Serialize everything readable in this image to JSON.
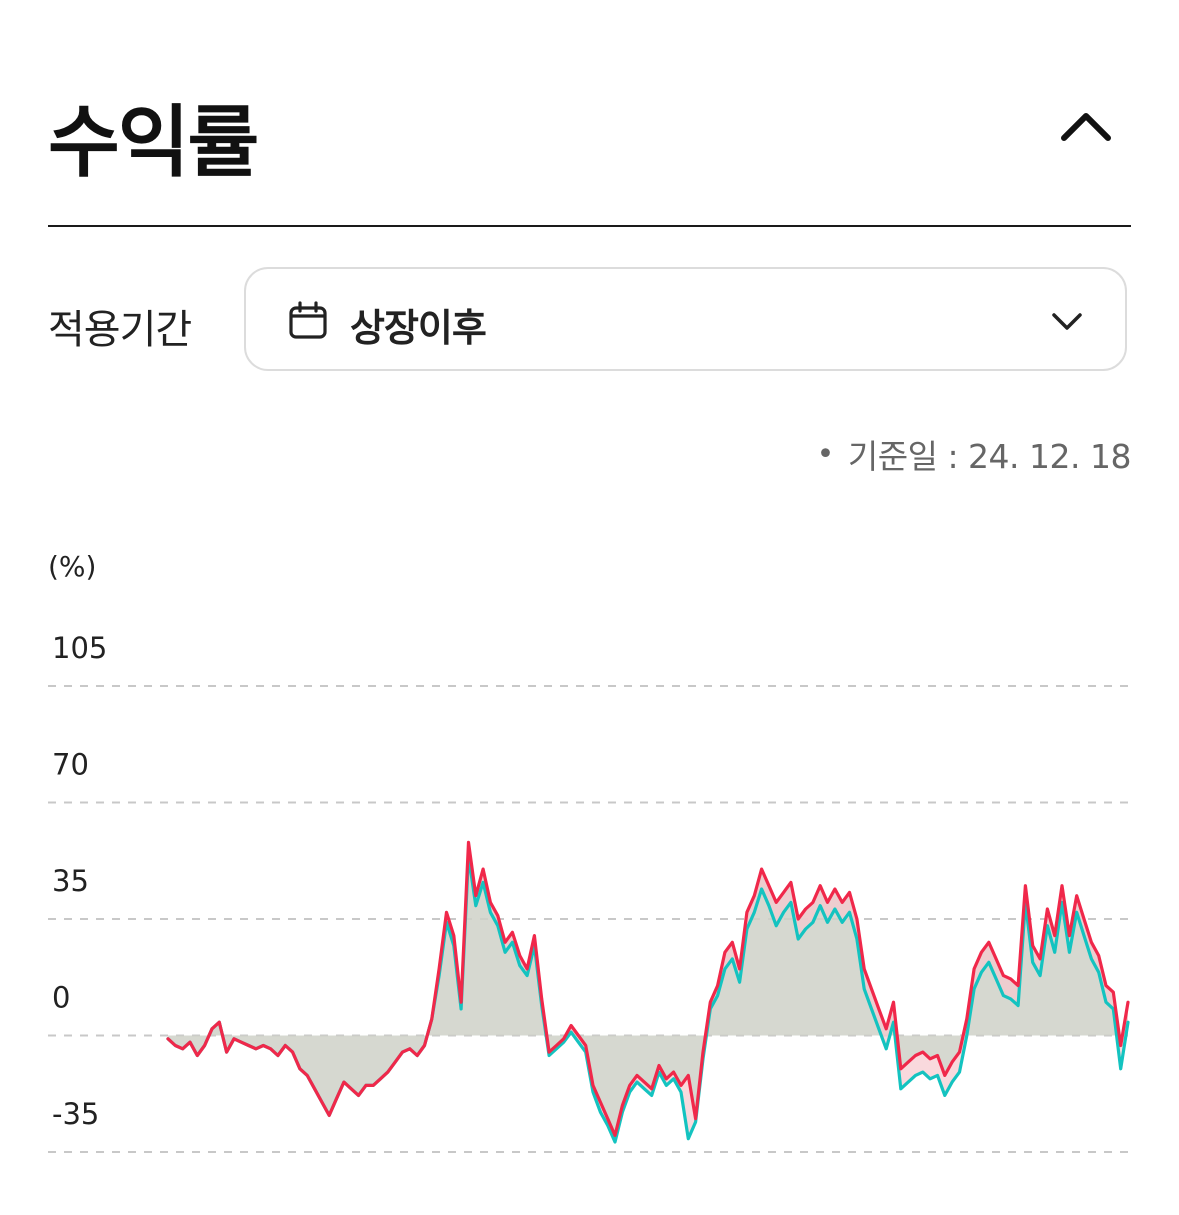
{
  "header": {
    "title": "수익률",
    "collapse_icon": "chevron-up-icon"
  },
  "period": {
    "label": "적용기간",
    "value": "상장이후",
    "icon": "calendar-icon",
    "dropdown_icon": "chevron-down-icon"
  },
  "base_date": {
    "text": "기준일 : 24. 12. 18"
  },
  "colors": {
    "fund_line": "#f0284a",
    "benchmark_line": "#14c3c0",
    "area_fill": "#cfd1c8",
    "grid": "#c8c8c8"
  },
  "chart_data": {
    "type": "line",
    "unit_label": "(%)",
    "y_ticks": [
      "105",
      "70",
      "35",
      "0",
      "-35"
    ],
    "ylim": [
      -35,
      105
    ],
    "grid": true,
    "series": [
      {
        "color": "#f0284a",
        "values": [
          -1,
          -3,
          -4,
          -2,
          -6,
          -3,
          2,
          4,
          -5,
          -1,
          -2,
          -3,
          -4,
          -3,
          -4,
          -6,
          -3,
          -5,
          -10,
          -12,
          -16,
          -20,
          -24,
          -19,
          -14,
          -16,
          -18,
          -15,
          -15,
          -13,
          -11,
          -8,
          -5,
          -4,
          -6,
          -3,
          5,
          20,
          37,
          30,
          10,
          58,
          42,
          50,
          40,
          36,
          28,
          31,
          24,
          20,
          30,
          11,
          -5,
          -3,
          -1,
          3,
          0,
          -3,
          -15,
          -20,
          -25,
          -30,
          -21,
          -15,
          -12,
          -14,
          -16,
          -9,
          -13,
          -11,
          -15,
          -12,
          -25,
          -5,
          10,
          15,
          25,
          28,
          20,
          37,
          42,
          50,
          45,
          40,
          43,
          46,
          35,
          38,
          40,
          45,
          40,
          44,
          40,
          43,
          35,
          20,
          14,
          8,
          2,
          10,
          -10,
          -8,
          -6,
          -5,
          -7,
          -6,
          -12,
          -8,
          -5,
          5,
          20,
          25,
          28,
          23,
          18,
          17,
          15,
          45,
          27,
          23,
          38,
          30,
          45,
          30,
          42,
          35,
          28,
          24,
          15,
          13,
          -3,
          10
        ],
        "marker": "none"
      },
      {
        "color": "#14c3c0",
        "values": [
          -1,
          -3,
          -4,
          -2,
          -6,
          -3,
          2,
          4,
          -5,
          -1,
          -2,
          -3,
          -4,
          -3,
          -4,
          -6,
          -3,
          -5,
          -10,
          -12,
          -16,
          -20,
          -24,
          -19,
          -14,
          -16,
          -18,
          -15,
          -15,
          -13,
          -11,
          -8,
          -5,
          -4,
          -6,
          -3,
          5,
          18,
          34,
          27,
          8,
          54,
          39,
          46,
          37,
          33,
          25,
          28,
          21,
          18,
          27,
          9,
          -6,
          -4,
          -2,
          1,
          -2,
          -5,
          -17,
          -23,
          -27,
          -32,
          -23,
          -17,
          -14,
          -16,
          -18,
          -11,
          -15,
          -13,
          -17,
          -31,
          -26,
          -7,
          8,
          12,
          20,
          23,
          16,
          32,
          37,
          44,
          39,
          33,
          37,
          40,
          29,
          32,
          34,
          39,
          34,
          38,
          34,
          37,
          29,
          14,
          8,
          2,
          -4,
          4,
          -16,
          -14,
          -12,
          -11,
          -13,
          -12,
          -18,
          -14,
          -11,
          0,
          14,
          19,
          22,
          17,
          12,
          11,
          9,
          40,
          22,
          18,
          33,
          25,
          40,
          25,
          37,
          30,
          23,
          19,
          10,
          8,
          -10,
          4
        ],
        "marker": "none"
      }
    ]
  }
}
